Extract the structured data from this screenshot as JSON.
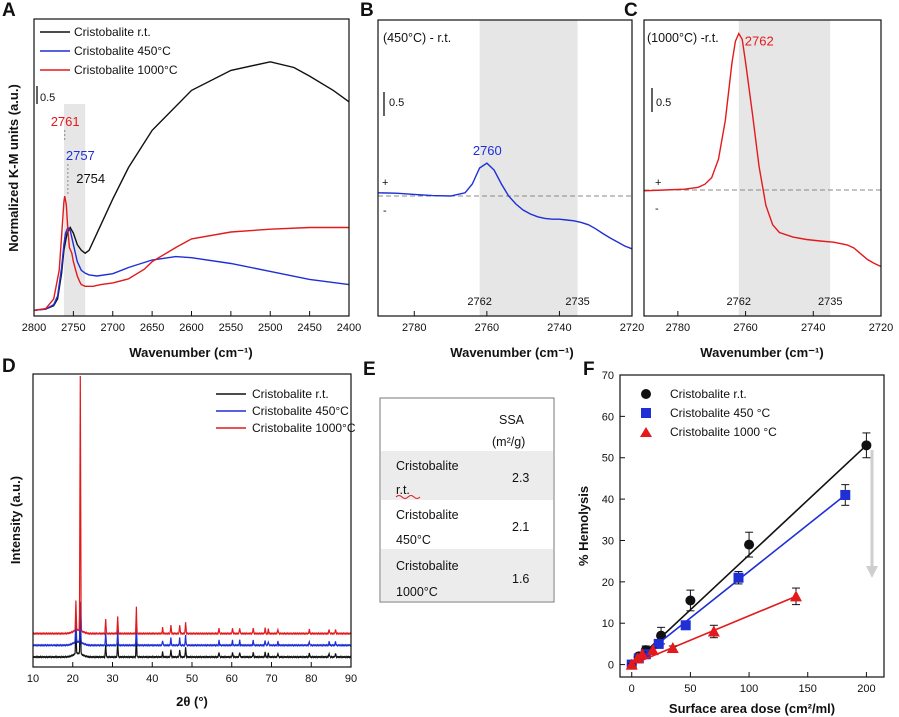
{
  "colors": {
    "rt": "#111111",
    "c450": "#1f2fd6",
    "c1000": "#e3191c",
    "shade": "#e6e6e6",
    "dash": "#888888"
  },
  "chart_data": [
    {
      "panel": "A",
      "type": "line",
      "xlabel": "Wavenumber (cm⁻¹)",
      "ylabel": "Normalized K-M units (a.u.)",
      "xlim": [
        2800,
        2400
      ],
      "xticks": [
        2800,
        2750,
        2700,
        2650,
        2600,
        2550,
        2500,
        2450,
        2400
      ],
      "ylim": [
        0,
        5.2
      ],
      "scale_bar": "0.5",
      "shaded_band": [
        2762,
        2735
      ],
      "legend": [
        "Cristobalite r.t.",
        "Cristobalite 450°C",
        "Cristobalite 1000°C"
      ],
      "annotations": [
        {
          "text": "2761",
          "series": "1000",
          "x": 2761
        },
        {
          "text": "2757",
          "series": "450",
          "x": 2757
        },
        {
          "text": "2754",
          "series": "rt",
          "x": 2754
        }
      ],
      "series": [
        {
          "name": "Cristobalite r.t.",
          "key": "rt",
          "x": [
            2800,
            2785,
            2775,
            2770,
            2765,
            2762,
            2758,
            2754,
            2750,
            2745,
            2740,
            2735,
            2730,
            2720,
            2700,
            2680,
            2650,
            2600,
            2550,
            2500,
            2470,
            2450,
            2420,
            2400
          ],
          "y": [
            0.1,
            0.12,
            0.18,
            0.3,
            0.75,
            1.15,
            1.45,
            1.55,
            1.45,
            1.25,
            1.15,
            1.1,
            1.15,
            1.45,
            2.05,
            2.6,
            3.25,
            3.95,
            4.3,
            4.45,
            4.35,
            4.2,
            3.95,
            3.75
          ]
        },
        {
          "name": "Cristobalite 450°C",
          "key": "450",
          "x": [
            2800,
            2785,
            2775,
            2770,
            2765,
            2762,
            2760,
            2757,
            2754,
            2750,
            2745,
            2740,
            2735,
            2730,
            2720,
            2700,
            2680,
            2650,
            2620,
            2600,
            2550,
            2500,
            2450,
            2400
          ],
          "y": [
            0.1,
            0.12,
            0.2,
            0.35,
            0.85,
            1.25,
            1.45,
            1.55,
            1.5,
            1.25,
            0.95,
            0.8,
            0.75,
            0.72,
            0.7,
            0.74,
            0.85,
            0.98,
            1.04,
            1.02,
            0.92,
            0.78,
            0.64,
            0.55
          ]
        },
        {
          "name": "Cristobalite 1000°C",
          "key": "1000",
          "x": [
            2800,
            2785,
            2775,
            2768,
            2765,
            2762,
            2761,
            2759,
            2757,
            2755,
            2752,
            2750,
            2747,
            2745,
            2742,
            2740,
            2735,
            2725,
            2715,
            2700,
            2680,
            2660,
            2650,
            2620,
            2600,
            2550,
            2500,
            2450,
            2400
          ],
          "y": [
            0.1,
            0.13,
            0.3,
            0.8,
            1.4,
            2.0,
            2.1,
            1.95,
            1.5,
            1.2,
            1.1,
            0.95,
            0.8,
            0.7,
            0.6,
            0.55,
            0.52,
            0.52,
            0.55,
            0.58,
            0.65,
            0.82,
            0.95,
            1.2,
            1.35,
            1.47,
            1.52,
            1.55,
            1.55
          ]
        }
      ]
    },
    {
      "panel": "B",
      "type": "line",
      "title": "(450°C) - r.t.",
      "xlabel": "Wavenumber (cm⁻¹)",
      "xlim": [
        2790,
        2720
      ],
      "xticks": [
        2780,
        2760,
        2740,
        2720
      ],
      "ylim": [
        -2.0,
        4.4
      ],
      "scale_bar": "0.5",
      "shaded_band": [
        2762,
        2735
      ],
      "band_labels": [
        "2762",
        "2735"
      ],
      "sign_labels": [
        "+",
        "-"
      ],
      "annotations": [
        {
          "text": "2760",
          "x": 2760
        }
      ],
      "series": [
        {
          "name": "(450°C) - r.t.",
          "key": "450",
          "x": [
            2790,
            2785,
            2780,
            2775,
            2770,
            2766,
            2764,
            2762,
            2760,
            2758,
            2756,
            2754,
            2752,
            2750,
            2748,
            2746,
            2744,
            2742,
            2740,
            2738,
            2736,
            2734,
            2732,
            2730,
            2728,
            2726,
            2724,
            2722,
            2720
          ],
          "y": [
            0.08,
            0.07,
            0.04,
            0.01,
            0.0,
            0.08,
            0.3,
            0.7,
            0.82,
            0.65,
            0.3,
            0.0,
            -0.2,
            -0.35,
            -0.45,
            -0.52,
            -0.56,
            -0.58,
            -0.58,
            -0.6,
            -0.62,
            -0.66,
            -0.72,
            -0.82,
            -0.94,
            -1.05,
            -1.15,
            -1.25,
            -1.32
          ]
        }
      ]
    },
    {
      "panel": "C",
      "type": "line",
      "title": "(1000°C) -r.t.",
      "xlabel": "Wavenumber (cm⁻¹)",
      "xlim": [
        2790,
        2720
      ],
      "xticks": [
        2780,
        2760,
        2740,
        2720
      ],
      "ylim": [
        -2.5,
        4.4
      ],
      "scale_bar": "0.5",
      "shaded_band": [
        2762,
        2735
      ],
      "band_labels": [
        "2762",
        "2735"
      ],
      "sign_labels": [
        "+",
        "-"
      ],
      "annotations": [
        {
          "text": "2762",
          "x": 2762
        }
      ],
      "series": [
        {
          "name": "(1000°C) -r.t.",
          "key": "1000",
          "x": [
            2790,
            2784,
            2778,
            2774,
            2772,
            2770,
            2768,
            2766,
            2764,
            2763,
            2762,
            2761,
            2760,
            2758,
            2756,
            2754,
            2752,
            2750,
            2746,
            2742,
            2738,
            2734,
            2730,
            2728,
            2726,
            2724,
            2722,
            2720
          ],
          "y": [
            -0.02,
            0.0,
            0.02,
            0.07,
            0.15,
            0.32,
            0.8,
            1.8,
            3.3,
            3.85,
            4.05,
            3.9,
            3.3,
            2.0,
            0.6,
            -0.4,
            -0.9,
            -1.1,
            -1.22,
            -1.28,
            -1.32,
            -1.35,
            -1.42,
            -1.5,
            -1.65,
            -1.8,
            -1.9,
            -1.98
          ]
        }
      ]
    },
    {
      "panel": "D",
      "type": "line",
      "xlabel": "2θ (°)",
      "ylabel": "Intensity (a.u.)",
      "xlim": [
        10,
        90
      ],
      "xticks": [
        10,
        20,
        30,
        40,
        50,
        60,
        70,
        80,
        90
      ],
      "legend": [
        "Cristobalite r.t.",
        "Cristobalite 450°C",
        "Cristobalite 1000°C"
      ],
      "peaks_2theta": [
        20.8,
        21.9,
        28.3,
        31.3,
        36.0,
        42.6,
        44.7,
        46.9,
        48.4,
        56.8,
        60.2,
        62.0,
        65.4,
        68.4,
        69.2,
        71.6,
        79.5,
        84.5,
        86.1
      ],
      "peak_heights": [
        0.1,
        1.0,
        0.05,
        0.06,
        0.09,
        0.02,
        0.03,
        0.03,
        0.04,
        0.02,
        0.02,
        0.02,
        0.02,
        0.02,
        0.015,
        0.015,
        0.015,
        0.015,
        0.015
      ],
      "series": [
        {
          "name": "Cristobalite r.t.",
          "key": "rt",
          "offset": 0,
          "main_peak": 0.15
        },
        {
          "name": "Cristobalite 450°C",
          "key": "450",
          "offset": 0.04,
          "main_peak": 0.14
        },
        {
          "name": "Cristobalite 1000°C",
          "key": "1000",
          "offset": 0.08,
          "main_peak": 0.92
        }
      ]
    },
    {
      "panel": "E",
      "type": "table",
      "header": [
        "SSA",
        "(m²/g)"
      ],
      "rows": [
        {
          "name1": "Cristobalite",
          "name2": "r.t.",
          "value": "2.3"
        },
        {
          "name1": "Cristobalite",
          "name2": "450°C",
          "value": "2.1"
        },
        {
          "name1": "Cristobalite",
          "name2": "1000°C",
          "value": "1.6"
        }
      ]
    },
    {
      "panel": "F",
      "type": "scatter",
      "xlabel": "Surface area dose (cm²/ml)",
      "ylabel": "% Hemolysis",
      "xlim": [
        -10,
        215
      ],
      "ylim": [
        -3,
        70
      ],
      "xticks": [
        0,
        50,
        100,
        150,
        200
      ],
      "yticks": [
        0,
        10,
        20,
        30,
        40,
        50,
        60,
        70
      ],
      "legend": [
        "Cristobalite r.t.",
        "Cristobalite 450 °C",
        "Cristobalite 1000 °C"
      ],
      "series": [
        {
          "name": "Cristobalite r.t.",
          "key": "rt",
          "marker": "circle",
          "x": [
            0,
            6,
            12,
            25,
            50,
            100,
            200
          ],
          "y": [
            0,
            2,
            3.5,
            7,
            15.5,
            29,
            53
          ],
          "err": [
            0.3,
            0.5,
            1,
            2,
            2.5,
            3,
            3
          ],
          "fit": [
            [
              0,
              0
            ],
            [
              200,
              53
            ]
          ]
        },
        {
          "name": "Cristobalite 450 °C",
          "key": "450",
          "marker": "square",
          "x": [
            0,
            6,
            12,
            23,
            46,
            91,
            182
          ],
          "y": [
            0,
            1.5,
            2.5,
            5,
            9.5,
            21,
            41
          ],
          "err": [
            0.3,
            0.5,
            0.5,
            1,
            1,
            1.5,
            2.5
          ],
          "fit": [
            [
              0,
              0
            ],
            [
              182,
              41
            ]
          ]
        },
        {
          "name": "Cristobalite 1000 °C",
          "key": "1000",
          "marker": "triangle",
          "x": [
            0,
            5,
            9,
            18,
            35,
            70,
            140
          ],
          "y": [
            0,
            1.5,
            2.5,
            3.5,
            4,
            8,
            16.5
          ],
          "err": [
            0.3,
            0.3,
            0.5,
            0.5,
            0.5,
            1.5,
            2
          ],
          "fit": [
            [
              0,
              0
            ],
            [
              140,
              16.5
            ]
          ]
        }
      ]
    }
  ]
}
